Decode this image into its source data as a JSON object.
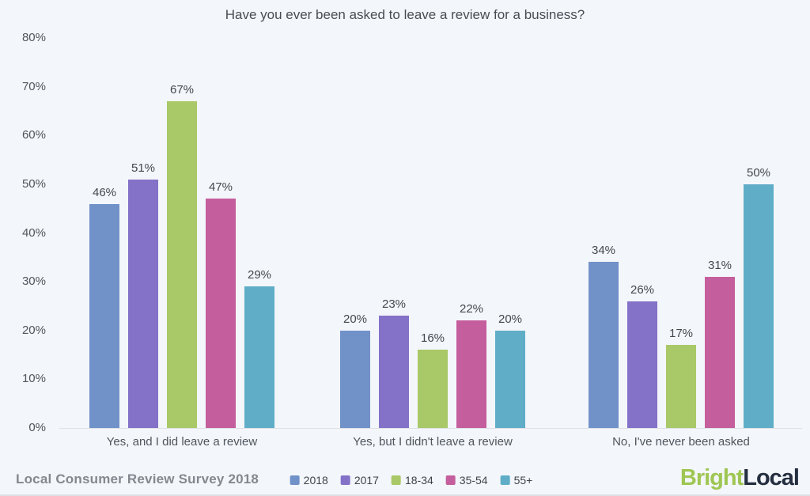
{
  "chart_data": {
    "type": "bar",
    "title": "Have you ever been asked to leave a review for a business?",
    "categories": [
      "Yes, and I did leave a review",
      "Yes, but I didn't leave a review",
      "No, I've never been asked"
    ],
    "series": [
      {
        "name": "2018",
        "color": "#7191c9",
        "values": [
          46,
          20,
          34
        ]
      },
      {
        "name": "2017",
        "color": "#8471c8",
        "values": [
          51,
          23,
          26
        ]
      },
      {
        "name": "18-34",
        "color": "#a9c867",
        "values": [
          67,
          16,
          17
        ]
      },
      {
        "name": "35-54",
        "color": "#c55e9d",
        "values": [
          47,
          22,
          31
        ]
      },
      {
        "name": "55+",
        "color": "#5fadc7",
        "values": [
          29,
          20,
          50
        ]
      }
    ],
    "value_suffix": "%",
    "ylim": [
      0,
      80
    ],
    "yticks": [
      "0%",
      "10%",
      "20%",
      "30%",
      "40%",
      "50%",
      "60%",
      "70%",
      "80%"
    ],
    "grid": false,
    "legend_position": "bottom",
    "data_labels": true
  },
  "footer": {
    "source_label": "Local Consumer Review Survey 2018",
    "logo": {
      "part1": "Bright",
      "part1_color": "#9fc653",
      "part2": "Local",
      "part2_color": "#242e40"
    }
  },
  "colors": {
    "background": "#f3f6fa",
    "axis_line": "#dce1e6",
    "text": "#4f565e",
    "value_label": "#43484e"
  }
}
